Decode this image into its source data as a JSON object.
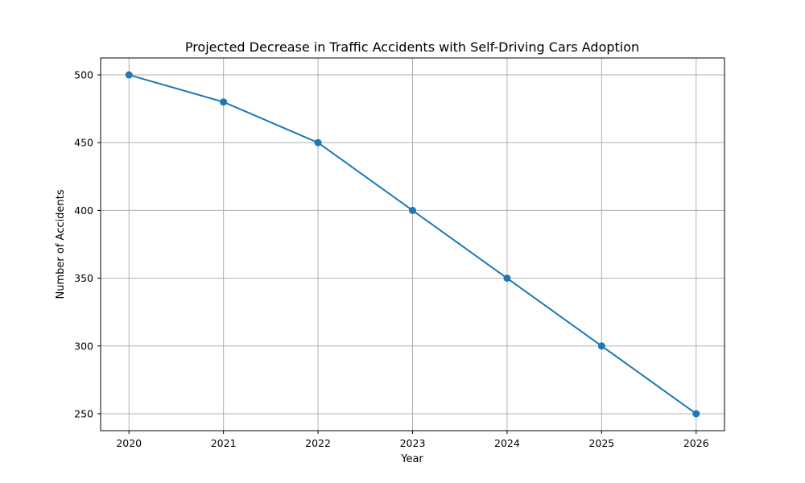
{
  "chart_data": {
    "type": "line",
    "title": "Projected Decrease in Traffic Accidents with Self-Driving Cars Adoption",
    "xlabel": "Year",
    "ylabel": "Number of Accidents",
    "x": [
      2020,
      2021,
      2022,
      2023,
      2024,
      2025,
      2026
    ],
    "series": [
      {
        "values": [
          500,
          480,
          450,
          400,
          350,
          300,
          250
        ]
      }
    ],
    "xlim": [
      2019.7,
      2026.3
    ],
    "ylim": [
      237.5,
      512.5
    ],
    "xticks": [
      2020,
      2021,
      2022,
      2023,
      2024,
      2025,
      2026
    ],
    "yticks": [
      250,
      300,
      350,
      400,
      450,
      500
    ],
    "grid": true,
    "markers": true,
    "colors": {
      "line": "#1f77b4",
      "grid": "#b0b0b0"
    }
  }
}
